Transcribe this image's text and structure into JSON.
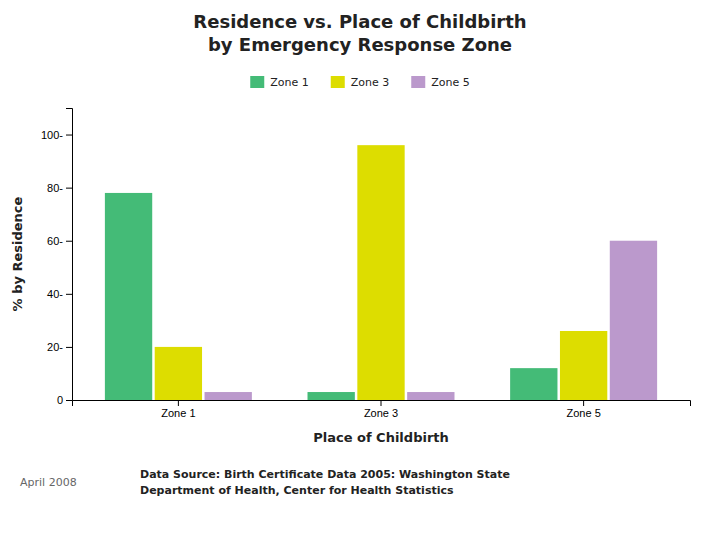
{
  "chart_data": {
    "type": "bar",
    "title": "Residence vs. Place of Childbirth\nby Emergency Response Zone",
    "x_label": "Place of Childbirth",
    "y_label": "% by Residence",
    "categories": [
      "Zone 1",
      "Zone 3",
      "Zone 5"
    ],
    "series": [
      {
        "name": "Zone 1",
        "color": "#44bb77",
        "values": [
          78,
          3,
          12
        ]
      },
      {
        "name": "Zone 3",
        "color": "#dddd00",
        "values": [
          20,
          96,
          26
        ]
      },
      {
        "name": "Zone 5",
        "color": "#bb99cc",
        "values": [
          3,
          3,
          60
        ]
      }
    ],
    "ylim": [
      0,
      110
    ],
    "yticks": [
      0,
      {
        "value": 20,
        "label": "20-"
      },
      {
        "value": 40,
        "label": "40-"
      },
      {
        "value": 60,
        "label": "60-"
      },
      {
        "value": 80,
        "label": "80-"
      },
      {
        "value": 100,
        "label": "100-"
      }
    ],
    "grid": false,
    "legend": "top",
    "annotations": [
      "April 2008",
      "Data Source: Birth Certificate Data 2005: Washington State\nDepartment of Health, Center for Health Statistics"
    ]
  }
}
